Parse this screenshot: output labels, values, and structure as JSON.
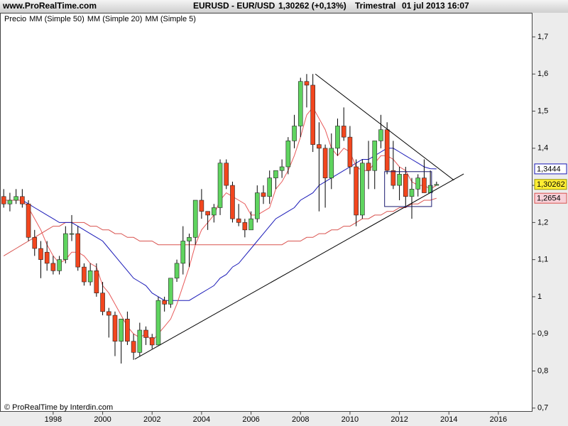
{
  "chart_data": {
    "type": "candlestick",
    "source": "www.ProRealTime.com",
    "title": "EURUSD - EUR/USD",
    "subtitle": "1,30262 (+0,13%)",
    "period": "Trimestral",
    "date": "01 jul 2013 16:07",
    "footer": "© ProRealTime by Interdin.com",
    "xlim": [
      1995.85,
      2017.38
    ],
    "xticks": [
      1998,
      2000,
      2002,
      2004,
      2006,
      2008,
      2010,
      2012,
      2014,
      2016
    ],
    "ylim": [
      0.69,
      1.765
    ],
    "yticks": [
      {
        "value": 0.7,
        "label": "0,7"
      },
      {
        "value": 0.8,
        "label": "0,8"
      },
      {
        "value": 0.9,
        "label": "0,9"
      },
      1,
      {
        "value": 1.1,
        "label": "1,1"
      },
      {
        "value": 1.2,
        "label": "1,2"
      },
      {
        "value": 1.3,
        "label": "1,3"
      },
      {
        "value": 1.4,
        "label": "1,4"
      },
      {
        "value": 1.5,
        "label": "1,5"
      },
      {
        "value": 1.6,
        "label": "1,6"
      },
      {
        "value": 1.7,
        "label": "1,7"
      }
    ],
    "grid": false,
    "x": [
      1996,
      1996.25,
      1996.5,
      1996.75,
      1997,
      1997.25,
      1997.5,
      1997.75,
      1998,
      1998.25,
      1998.5,
      1998.75,
      1999,
      1999.25,
      1999.5,
      1999.75,
      2000,
      2000.25,
      2000.5,
      2000.75,
      2001,
      2001.25,
      2001.5,
      2001.75,
      2002,
      2002.25,
      2002.5,
      2002.75,
      2003,
      2003.25,
      2003.5,
      2003.75,
      2004,
      2004.25,
      2004.5,
      2004.75,
      2005,
      2005.25,
      2005.5,
      2005.75,
      2006,
      2006.25,
      2006.5,
      2006.75,
      2007,
      2007.25,
      2007.5,
      2007.75,
      2008,
      2008.25,
      2008.5,
      2008.75,
      2009,
      2009.25,
      2009.5,
      2009.75,
      2010,
      2010.25,
      2010.5,
      2010.75,
      2011,
      2011.25,
      2011.5,
      2011.75,
      2012,
      2012.25,
      2012.5,
      2012.75,
      2013,
      2013.25,
      2013.5
    ],
    "candles": {
      "name": "Precio",
      "up_color": "#5fd45f",
      "down_color": "#f2461e",
      "last_label": "1,30262",
      "open": [
        1.27,
        1.25,
        1.26,
        1.27,
        1.25,
        1.16,
        1.13,
        1.12,
        1.09,
        1.07,
        1.1,
        1.17,
        1.17,
        1.08,
        1.04,
        1.07,
        1.01,
        0.96,
        0.95,
        0.88,
        0.94,
        0.88,
        0.85,
        0.91,
        0.89,
        0.87,
        0.99,
        0.98,
        1.05,
        1.09,
        1.15,
        1.16,
        1.26,
        1.23,
        1.22,
        1.24,
        1.36,
        1.3,
        1.21,
        1.2,
        1.18,
        1.21,
        1.28,
        1.27,
        1.32,
        1.34,
        1.35,
        1.42,
        1.46,
        1.58,
        1.57,
        1.41,
        1.4,
        1.32,
        1.4,
        1.46,
        1.43,
        1.35,
        1.22,
        1.36,
        1.34,
        1.42,
        1.45,
        1.34,
        1.3,
        1.33,
        1.27,
        1.29,
        1.32,
        1.28,
        1.3
      ],
      "high": [
        1.29,
        1.28,
        1.29,
        1.29,
        1.26,
        1.18,
        1.15,
        1.15,
        1.11,
        1.11,
        1.19,
        1.22,
        1.19,
        1.09,
        1.09,
        1.09,
        1.04,
        0.97,
        0.96,
        0.94,
        0.96,
        0.9,
        0.93,
        0.92,
        0.9,
        1.0,
        1.0,
        1.05,
        1.1,
        1.19,
        1.17,
        1.26,
        1.29,
        1.23,
        1.25,
        1.37,
        1.37,
        1.31,
        1.25,
        1.21,
        1.23,
        1.3,
        1.3,
        1.34,
        1.34,
        1.37,
        1.43,
        1.49,
        1.59,
        1.6,
        1.6,
        1.47,
        1.41,
        1.44,
        1.48,
        1.51,
        1.46,
        1.37,
        1.37,
        1.42,
        1.42,
        1.49,
        1.47,
        1.42,
        1.35,
        1.35,
        1.32,
        1.33,
        1.37,
        1.34,
        1.31
      ],
      "low": [
        1.24,
        1.23,
        1.25,
        1.24,
        1.15,
        1.11,
        1.05,
        1.07,
        1.06,
        1.06,
        1.09,
        1.15,
        1.07,
        1.03,
        1.03,
        1.0,
        0.95,
        0.89,
        0.84,
        0.82,
        0.87,
        0.83,
        0.84,
        0.87,
        0.86,
        0.87,
        0.96,
        0.97,
        1.04,
        1.06,
        1.08,
        1.14,
        1.21,
        1.18,
        1.2,
        1.22,
        1.29,
        1.2,
        1.19,
        1.16,
        1.18,
        1.2,
        1.25,
        1.25,
        1.29,
        1.32,
        1.33,
        1.4,
        1.43,
        1.51,
        1.39,
        1.23,
        1.24,
        1.29,
        1.38,
        1.42,
        1.33,
        1.19,
        1.21,
        1.29,
        1.29,
        1.4,
        1.33,
        1.29,
        1.26,
        1.24,
        1.21,
        1.27,
        1.28,
        1.28,
        1.3
      ],
      "close": [
        1.25,
        1.26,
        1.27,
        1.25,
        1.16,
        1.13,
        1.1,
        1.09,
        1.07,
        1.1,
        1.17,
        1.17,
        1.08,
        1.04,
        1.07,
        1.01,
        0.96,
        0.95,
        0.88,
        0.94,
        0.88,
        0.85,
        0.91,
        0.89,
        0.87,
        0.99,
        0.98,
        1.05,
        1.09,
        1.15,
        1.16,
        1.26,
        1.23,
        1.22,
        1.24,
        1.36,
        1.3,
        1.21,
        1.2,
        1.18,
        1.21,
        1.28,
        1.27,
        1.32,
        1.34,
        1.35,
        1.42,
        1.46,
        1.58,
        1.57,
        1.41,
        1.4,
        1.32,
        1.4,
        1.46,
        1.43,
        1.35,
        1.22,
        1.36,
        1.34,
        1.42,
        1.45,
        1.34,
        1.3,
        1.33,
        1.27,
        1.29,
        1.32,
        1.28,
        1.3,
        1.30262
      ]
    },
    "series": [
      {
        "name": "MM (Simple 50)",
        "color": "#d9534f",
        "label_box": "#f8d0d8",
        "last_label": "1,2654",
        "values": [
          1.11,
          1.12,
          1.13,
          1.14,
          1.15,
          1.16,
          1.17,
          1.18,
          1.19,
          1.19,
          1.2,
          1.2,
          1.2,
          1.2,
          1.19,
          1.19,
          1.18,
          1.18,
          1.17,
          1.17,
          1.16,
          1.16,
          1.15,
          1.15,
          1.15,
          1.14,
          1.14,
          1.14,
          1.14,
          1.14,
          1.14,
          1.14,
          1.14,
          1.14,
          1.14,
          1.14,
          1.14,
          1.14,
          1.14,
          1.14,
          1.14,
          1.14,
          1.14,
          1.14,
          1.14,
          1.14,
          1.15,
          1.15,
          1.15,
          1.16,
          1.16,
          1.17,
          1.17,
          1.18,
          1.18,
          1.19,
          1.19,
          1.2,
          1.21,
          1.21,
          1.22,
          1.22,
          1.23,
          1.23,
          1.24,
          1.24,
          1.25,
          1.25,
          1.26,
          1.26,
          1.2654
        ]
      },
      {
        "name": "MM (Simple 20)",
        "color": "#1a1ab8",
        "label_box": "#ffffff",
        "last_label": "1,3444",
        "values": [
          1.26,
          1.26,
          1.26,
          1.26,
          1.25,
          1.24,
          1.23,
          1.22,
          1.21,
          1.2,
          1.2,
          1.2,
          1.19,
          1.18,
          1.17,
          1.16,
          1.15,
          1.13,
          1.11,
          1.09,
          1.07,
          1.05,
          1.04,
          1.03,
          1.01,
          1.0,
          0.99,
          0.99,
          0.99,
          0.99,
          0.99,
          1.0,
          1.01,
          1.02,
          1.03,
          1.05,
          1.06,
          1.08,
          1.09,
          1.11,
          1.13,
          1.15,
          1.17,
          1.19,
          1.21,
          1.22,
          1.23,
          1.24,
          1.26,
          1.27,
          1.28,
          1.3,
          1.31,
          1.32,
          1.33,
          1.34,
          1.35,
          1.36,
          1.37,
          1.37,
          1.38,
          1.39,
          1.4,
          1.4,
          1.39,
          1.38,
          1.37,
          1.36,
          1.35,
          1.345,
          1.3444
        ]
      },
      {
        "name": "MM (Simple 5)",
        "color": "#e85a5a",
        "values": [
          1.26,
          1.26,
          1.26,
          1.26,
          1.24,
          1.21,
          1.18,
          1.14,
          1.11,
          1.09,
          1.1,
          1.12,
          1.12,
          1.11,
          1.09,
          1.08,
          1.03,
          1.01,
          0.98,
          0.95,
          0.92,
          0.9,
          0.89,
          0.9,
          0.88,
          0.9,
          0.92,
          0.94,
          0.98,
          1.03,
          1.08,
          1.14,
          1.18,
          1.2,
          1.22,
          1.26,
          1.28,
          1.27,
          1.26,
          1.25,
          1.22,
          1.22,
          1.23,
          1.24,
          1.29,
          1.31,
          1.34,
          1.38,
          1.43,
          1.49,
          1.51,
          1.48,
          1.45,
          1.4,
          1.38,
          1.4,
          1.39,
          1.35,
          1.34,
          1.34,
          1.36,
          1.38,
          1.38,
          1.37,
          1.35,
          1.34,
          1.31,
          1.3,
          1.3,
          1.29,
          1.3
        ]
      }
    ],
    "trendlines": [
      {
        "x": [
          2008.6,
          2014.2
        ],
        "y": [
          1.6,
          1.314
        ]
      },
      {
        "x": [
          2001.3,
          2014.6
        ],
        "y": [
          0.832,
          1.331
        ]
      }
    ],
    "rectangles": [
      {
        "x": [
          2011.4,
          2013.3
        ],
        "y": [
          1.243,
          1.337
        ]
      }
    ]
  }
}
